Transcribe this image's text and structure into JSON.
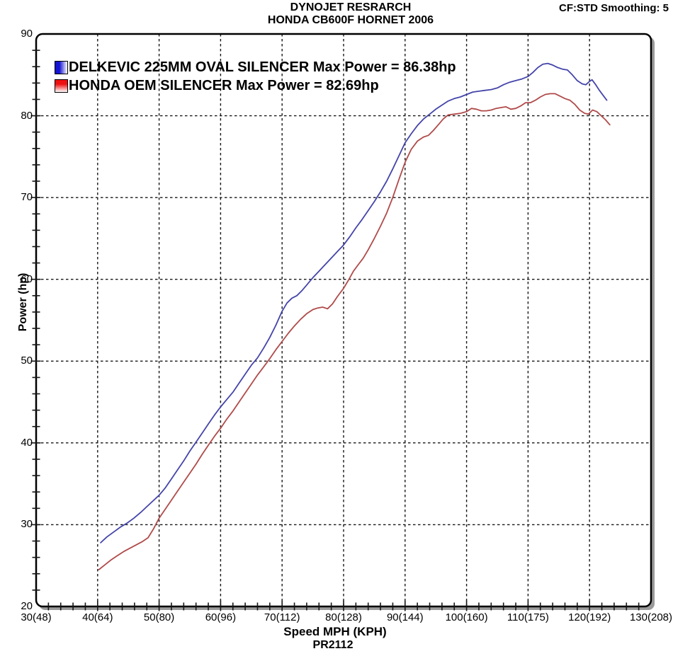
{
  "header": {
    "title_line1": "DYNOJET RESRARCH",
    "title_line2": "HONDA CB600F HORNET 2006",
    "smoothing": "CF:STD Smoothing: 5"
  },
  "footer": {
    "run_id": "PR2112"
  },
  "colors": {
    "blue_curve": "#4444aa",
    "red_curve": "#b04a4a",
    "grid": "#161616",
    "border": "#000000",
    "shadow": "#9a9a9a",
    "swatch_blue_start": "#1414d2",
    "swatch_red_start": "#ee1111",
    "swatch_fade": "#ffffff"
  },
  "chart_data": {
    "type": "line",
    "title": "DYNOJET RESRARCH",
    "subtitle": "HONDA CB600F HORNET 2006",
    "xlabel": "Speed MPH (KPH)",
    "ylabel": "Power (hp)",
    "xlim": [
      30,
      130
    ],
    "ylim": [
      20,
      90
    ],
    "x_minor_step": 2,
    "y_minor_step": 2,
    "grid": "dashed-on-major",
    "legend_position": "top-left-inside",
    "x_major_ticks": [
      {
        "value": 30,
        "label": "30(48)"
      },
      {
        "value": 40,
        "label": "40(64)"
      },
      {
        "value": 50,
        "label": "50(80)"
      },
      {
        "value": 60,
        "label": "60(96)"
      },
      {
        "value": 70,
        "label": "70(112)"
      },
      {
        "value": 80,
        "label": "80(128)"
      },
      {
        "value": 90,
        "label": "90(144)"
      },
      {
        "value": 100,
        "label": "100(160)"
      },
      {
        "value": 110,
        "label": "110(175)"
      },
      {
        "value": 120,
        "label": "120(192)"
      },
      {
        "value": 130,
        "label": "130(208)"
      }
    ],
    "y_major_ticks": [
      {
        "value": 20,
        "label": "20"
      },
      {
        "value": 30,
        "label": "30"
      },
      {
        "value": 40,
        "label": "40"
      },
      {
        "value": 50,
        "label": "50"
      },
      {
        "value": 60,
        "label": "60"
      },
      {
        "value": 70,
        "label": "70"
      },
      {
        "value": 80,
        "label": "80"
      },
      {
        "value": 90,
        "label": "90"
      }
    ],
    "series": [
      {
        "name": "DELKEVIC 225MM OVAL SILENCER",
        "legend_label": "DELKEVIC 225MM OVAL SILENCER Max Power = 86.38hp",
        "max_power_hp": 86.38,
        "color_key": "blue_curve",
        "swatch_key": "swatch_blue_start",
        "swatch_direction": "to right",
        "points": [
          [
            40.5,
            27.8
          ],
          [
            41.5,
            28.5
          ],
          [
            42.6,
            29.1
          ],
          [
            43.7,
            29.7
          ],
          [
            44.8,
            30.2
          ],
          [
            45.9,
            30.8
          ],
          [
            47.0,
            31.5
          ],
          [
            48.0,
            32.2
          ],
          [
            49.0,
            32.9
          ],
          [
            50.0,
            33.6
          ],
          [
            51.0,
            34.5
          ],
          [
            52.0,
            35.6
          ],
          [
            53.0,
            36.7
          ],
          [
            54.0,
            37.8
          ],
          [
            55.0,
            39.0
          ],
          [
            56.0,
            40.1
          ],
          [
            57.0,
            41.2
          ],
          [
            58.0,
            42.3
          ],
          [
            59.0,
            43.4
          ],
          [
            60.0,
            44.4
          ],
          [
            61.0,
            45.3
          ],
          [
            62.0,
            46.2
          ],
          [
            63.0,
            47.3
          ],
          [
            64.0,
            48.4
          ],
          [
            65.0,
            49.5
          ],
          [
            66.0,
            50.4
          ],
          [
            67.0,
            51.6
          ],
          [
            68.0,
            52.9
          ],
          [
            69.0,
            54.4
          ],
          [
            70.0,
            56.1
          ],
          [
            70.8,
            57.1
          ],
          [
            71.6,
            57.7
          ],
          [
            72.4,
            58.0
          ],
          [
            73.2,
            58.6
          ],
          [
            74.0,
            59.3
          ],
          [
            75.0,
            60.2
          ],
          [
            76.0,
            61.0
          ],
          [
            77.0,
            61.8
          ],
          [
            78.0,
            62.6
          ],
          [
            79.0,
            63.4
          ],
          [
            80.0,
            64.2
          ],
          [
            81.0,
            65.2
          ],
          [
            82.0,
            66.3
          ],
          [
            83.0,
            67.3
          ],
          [
            84.0,
            68.4
          ],
          [
            85.0,
            69.5
          ],
          [
            86.0,
            70.7
          ],
          [
            87.0,
            72.0
          ],
          [
            88.0,
            73.5
          ],
          [
            89.0,
            75.1
          ],
          [
            90.0,
            76.7
          ],
          [
            91.0,
            77.8
          ],
          [
            92.0,
            78.8
          ],
          [
            93.0,
            79.6
          ],
          [
            94.0,
            80.2
          ],
          [
            95.0,
            80.8
          ],
          [
            96.0,
            81.3
          ],
          [
            97.0,
            81.8
          ],
          [
            98.0,
            82.1
          ],
          [
            99.0,
            82.3
          ],
          [
            100.0,
            82.6
          ],
          [
            101.0,
            82.9
          ],
          [
            102.0,
            83.0
          ],
          [
            103.0,
            83.1
          ],
          [
            104.0,
            83.2
          ],
          [
            105.0,
            83.4
          ],
          [
            106.0,
            83.8
          ],
          [
            107.0,
            84.1
          ],
          [
            108.0,
            84.3
          ],
          [
            109.0,
            84.5
          ],
          [
            110.0,
            84.8
          ],
          [
            110.8,
            85.3
          ],
          [
            111.6,
            85.9
          ],
          [
            112.4,
            86.3
          ],
          [
            113.2,
            86.4
          ],
          [
            114.0,
            86.2
          ],
          [
            114.8,
            85.9
          ],
          [
            115.6,
            85.7
          ],
          [
            116.4,
            85.6
          ],
          [
            117.2,
            85.0
          ],
          [
            118.0,
            84.3
          ],
          [
            118.8,
            83.9
          ],
          [
            119.4,
            83.8
          ],
          [
            120.0,
            84.2
          ],
          [
            120.4,
            84.4
          ],
          [
            121.0,
            83.8
          ],
          [
            121.6,
            83.1
          ],
          [
            122.2,
            82.5
          ],
          [
            122.8,
            81.9
          ]
        ]
      },
      {
        "name": "HONDA OEM SILENCER",
        "legend_label": "HONDA OEM SILENCER Max Power = 82.69hp",
        "max_power_hp": 82.69,
        "color_key": "red_curve",
        "swatch_key": "swatch_red_start",
        "swatch_direction": "to bottom",
        "points": [
          [
            40.2,
            24.5
          ],
          [
            41.2,
            25.1
          ],
          [
            42.2,
            25.7
          ],
          [
            43.2,
            26.2
          ],
          [
            44.2,
            26.7
          ],
          [
            45.2,
            27.1
          ],
          [
            46.2,
            27.5
          ],
          [
            47.2,
            27.9
          ],
          [
            48.2,
            28.4
          ],
          [
            49.1,
            29.5
          ],
          [
            50.0,
            30.8
          ],
          [
            51.0,
            31.9
          ],
          [
            52.0,
            33.0
          ],
          [
            53.0,
            34.1
          ],
          [
            54.0,
            35.2
          ],
          [
            55.0,
            36.3
          ],
          [
            56.0,
            37.4
          ],
          [
            57.0,
            38.6
          ],
          [
            58.0,
            39.7
          ],
          [
            59.0,
            40.8
          ],
          [
            60.0,
            41.8
          ],
          [
            61.0,
            42.9
          ],
          [
            62.0,
            43.9
          ],
          [
            63.0,
            45.0
          ],
          [
            64.0,
            46.1
          ],
          [
            65.0,
            47.2
          ],
          [
            66.0,
            48.3
          ],
          [
            67.0,
            49.3
          ],
          [
            68.0,
            50.3
          ],
          [
            69.0,
            51.4
          ],
          [
            70.0,
            52.4
          ],
          [
            71.0,
            53.4
          ],
          [
            72.0,
            54.3
          ],
          [
            73.0,
            55.1
          ],
          [
            74.0,
            55.8
          ],
          [
            75.0,
            56.3
          ],
          [
            75.8,
            56.5
          ],
          [
            76.6,
            56.6
          ],
          [
            77.4,
            56.4
          ],
          [
            78.2,
            57.0
          ],
          [
            79.0,
            57.9
          ],
          [
            80.0,
            58.9
          ],
          [
            80.8,
            59.9
          ],
          [
            81.6,
            61.0
          ],
          [
            82.4,
            61.8
          ],
          [
            83.2,
            62.6
          ],
          [
            84.0,
            63.6
          ],
          [
            85.0,
            65.0
          ],
          [
            86.0,
            66.5
          ],
          [
            87.0,
            68.1
          ],
          [
            88.0,
            70.0
          ],
          [
            89.0,
            72.2
          ],
          [
            90.0,
            74.3
          ],
          [
            91.0,
            75.9
          ],
          [
            92.0,
            76.9
          ],
          [
            93.0,
            77.4
          ],
          [
            93.8,
            77.6
          ],
          [
            94.6,
            78.2
          ],
          [
            95.4,
            78.9
          ],
          [
            96.2,
            79.6
          ],
          [
            97.0,
            80.1
          ],
          [
            98.0,
            80.2
          ],
          [
            99.0,
            80.3
          ],
          [
            100.0,
            80.5
          ],
          [
            100.8,
            80.9
          ],
          [
            101.6,
            80.8
          ],
          [
            102.4,
            80.6
          ],
          [
            103.2,
            80.6
          ],
          [
            104.0,
            80.7
          ],
          [
            104.8,
            80.9
          ],
          [
            105.6,
            81.0
          ],
          [
            106.4,
            81.1
          ],
          [
            107.2,
            80.8
          ],
          [
            108.0,
            80.9
          ],
          [
            108.8,
            81.2
          ],
          [
            109.6,
            81.6
          ],
          [
            110.4,
            81.6
          ],
          [
            111.2,
            81.9
          ],
          [
            112.0,
            82.3
          ],
          [
            112.8,
            82.6
          ],
          [
            113.6,
            82.7
          ],
          [
            114.4,
            82.7
          ],
          [
            115.2,
            82.4
          ],
          [
            116.0,
            82.1
          ],
          [
            116.8,
            81.9
          ],
          [
            117.6,
            81.4
          ],
          [
            118.4,
            80.7
          ],
          [
            119.2,
            80.3
          ],
          [
            119.8,
            80.2
          ],
          [
            120.5,
            80.7
          ],
          [
            121.2,
            80.5
          ],
          [
            121.9,
            80.0
          ],
          [
            122.6,
            79.5
          ],
          [
            123.3,
            78.9
          ]
        ]
      }
    ]
  }
}
